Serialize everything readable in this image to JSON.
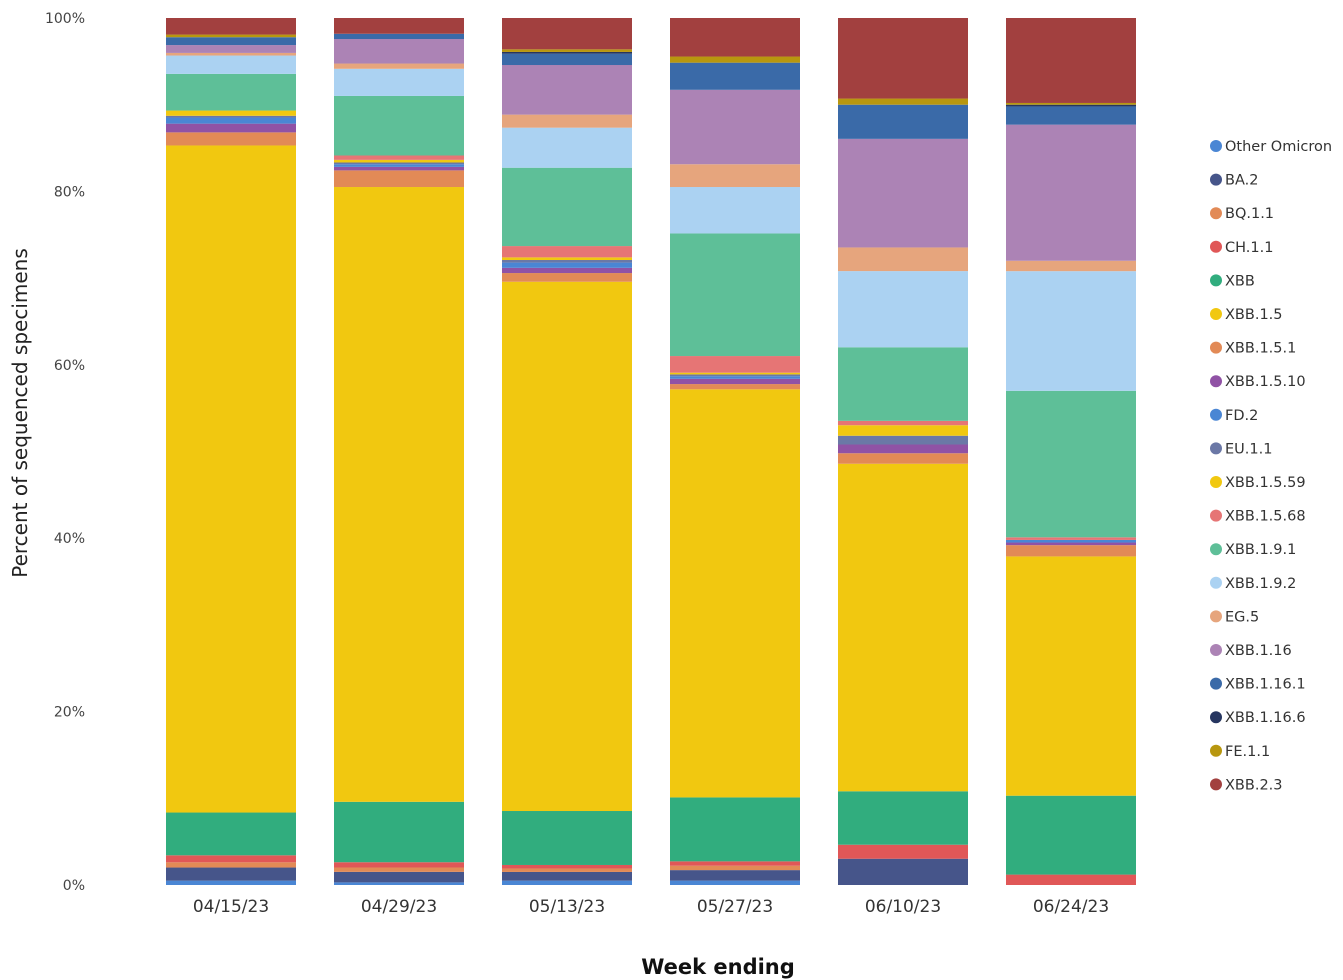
{
  "chart_data": {
    "type": "bar",
    "stacked": true,
    "normalized": true,
    "xlabel": "Week ending",
    "ylabel": "Percent of sequenced specimens",
    "ylim": [
      0,
      100
    ],
    "yticks": [
      "0%",
      "20%",
      "40%",
      "60%",
      "80%",
      "100%"
    ],
    "grid": false,
    "legend_position": "right",
    "categories": [
      "04/15/23",
      "04/29/23",
      "05/13/23",
      "05/27/23",
      "06/10/23",
      "06/24/23"
    ],
    "series": [
      {
        "name": "Other Omicron",
        "color": "#4a86d4",
        "values": [
          0.5,
          0.3,
          0.5,
          0.5,
          0.0,
          0.0
        ]
      },
      {
        "name": "BA.2",
        "color": "#46558a",
        "values": [
          1.5,
          1.2,
          1.0,
          1.2,
          3.0,
          0.0
        ]
      },
      {
        "name": "BQ.1.1",
        "color": "#e28a56",
        "values": [
          0.6,
          0.5,
          0.4,
          0.5,
          0.0,
          0.0
        ]
      },
      {
        "name": "CH.1.1",
        "color": "#e05757",
        "values": [
          0.8,
          0.6,
          0.4,
          0.5,
          1.6,
          1.2
        ]
      },
      {
        "name": "XBB",
        "color": "#31ad7e",
        "values": [
          4.9,
          6.9,
          6.2,
          7.3,
          6.1,
          9.1
        ]
      },
      {
        "name": "XBB.1.5",
        "color": "#f1c810",
        "values": [
          76.4,
          70.2,
          60.8,
          46.6,
          37.4,
          27.6
        ]
      },
      {
        "name": "XBB.1.5.1",
        "color": "#e28a56",
        "values": [
          1.5,
          1.9,
          1.0,
          0.6,
          1.2,
          1.3
        ]
      },
      {
        "name": "XBB.1.5.10",
        "color": "#9052a5",
        "values": [
          1.0,
          0.4,
          0.6,
          0.6,
          1.0,
          0.3
        ]
      },
      {
        "name": "FD.2",
        "color": "#4a86d4",
        "values": [
          0.7,
          0.3,
          0.6,
          0.3,
          0.0,
          0.3
        ]
      },
      {
        "name": "EU.1.1",
        "color": "#6b78a6",
        "values": [
          0.2,
          0.2,
          0.3,
          0.2,
          1.0,
          0.0
        ]
      },
      {
        "name": "XBB.1.5.59",
        "color": "#f1c810",
        "values": [
          0.6,
          0.3,
          0.3,
          0.2,
          1.2,
          0.0
        ]
      },
      {
        "name": "XBB.1.5.68",
        "color": "#e67575",
        "values": [
          0.0,
          0.5,
          1.3,
          1.9,
          0.5,
          0.3
        ]
      },
      {
        "name": "XBB.1.9.1",
        "color": "#5ebf98",
        "values": [
          4.2,
          6.8,
          9.0,
          14.0,
          8.4,
          16.9
        ]
      },
      {
        "name": "XBB.1.9.2",
        "color": "#abd2f2",
        "values": [
          2.1,
          3.1,
          4.6,
          5.3,
          8.7,
          13.8
        ]
      },
      {
        "name": "EG.5",
        "color": "#e6a57d",
        "values": [
          0.3,
          0.6,
          1.5,
          2.6,
          2.7,
          1.2
        ]
      },
      {
        "name": "XBB.1.16",
        "color": "#ac83b5",
        "values": [
          0.9,
          2.8,
          5.7,
          8.5,
          12.4,
          15.7
        ]
      },
      {
        "name": "XBB.1.16.1",
        "color": "#3a6aa8",
        "values": [
          0.9,
          0.6,
          1.3,
          3.1,
          3.9,
          2.1
        ]
      },
      {
        "name": "XBB.1.16.6",
        "color": "#263660",
        "values": [
          0.0,
          0.0,
          0.2,
          0.0,
          0.0,
          0.2
        ]
      },
      {
        "name": "FE.1.1",
        "color": "#b8970f",
        "values": [
          0.3,
          0.0,
          0.3,
          0.7,
          0.7,
          0.2
        ]
      },
      {
        "name": "XBB.2.3",
        "color": "#a2403f",
        "values": [
          1.9,
          1.8,
          3.6,
          4.4,
          9.2,
          9.8
        ]
      }
    ]
  }
}
